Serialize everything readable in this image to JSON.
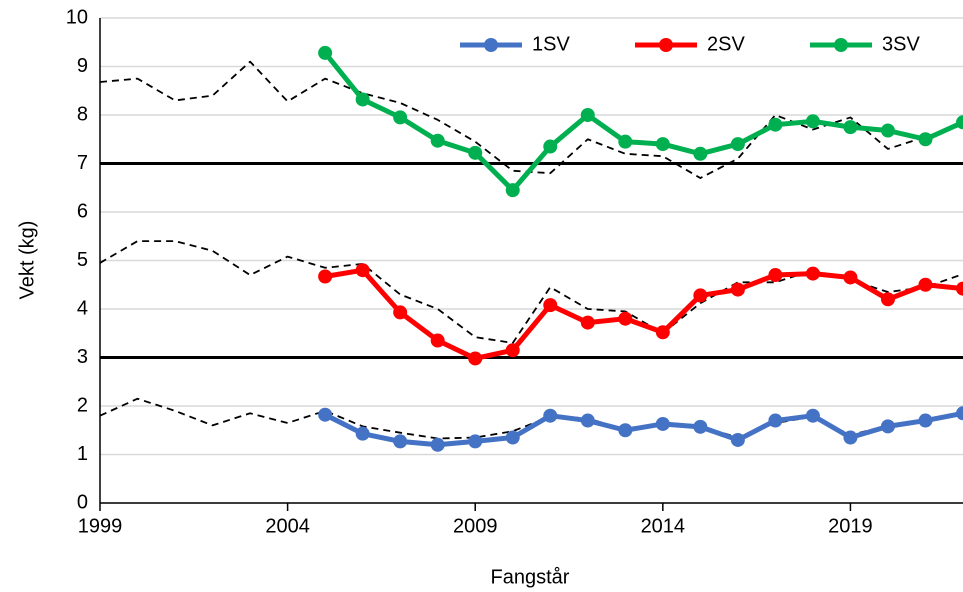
{
  "chart_data": {
    "type": "line",
    "x_label": "Fangstår",
    "y_label": "Vekt (kg)",
    "x": [
      1999,
      2000,
      2001,
      2002,
      2003,
      2004,
      2005,
      2006,
      2007,
      2008,
      2009,
      2010,
      2011,
      2012,
      2013,
      2014,
      2015,
      2016,
      2017,
      2018,
      2019,
      2020,
      2021,
      2022
    ],
    "xlim": [
      1999,
      2022
    ],
    "xticks": [
      1999,
      2004,
      2009,
      2014,
      2019
    ],
    "ylim": [
      0,
      10
    ],
    "yticks": [
      0,
      1,
      2,
      3,
      4,
      5,
      6,
      7,
      8,
      9,
      10
    ],
    "grid": true,
    "grid_color": "#d9d9d9",
    "hlines": [
      3,
      7
    ],
    "legend": "top-right",
    "series": [
      {
        "color": "#000000",
        "dash": true,
        "values": [
          8.68,
          8.75,
          8.3,
          8.4,
          9.1,
          8.28,
          8.75,
          8.45,
          8.25,
          7.9,
          7.45,
          6.85,
          6.8,
          7.5,
          7.2,
          7.15,
          6.7,
          7.1,
          8.0,
          7.7,
          7.95,
          7.3,
          7.55,
          7.8
        ]
      },
      {
        "color": "#000000",
        "dash": true,
        "values": [
          4.95,
          5.4,
          5.4,
          5.2,
          4.7,
          5.08,
          4.85,
          4.93,
          4.3,
          4.0,
          3.42,
          3.3,
          4.45,
          4.0,
          3.95,
          3.5,
          4.12,
          4.55,
          4.55,
          4.8,
          4.6,
          4.35,
          4.45,
          4.72
        ]
      },
      {
        "color": "#000000",
        "dash": true,
        "values": [
          1.8,
          2.15,
          1.9,
          1.6,
          1.85,
          1.65,
          1.9,
          1.58,
          1.45,
          1.33,
          1.35,
          1.48,
          1.78,
          1.75,
          1.5,
          1.6,
          1.58,
          1.35,
          1.65,
          1.78,
          1.4,
          1.6,
          1.67,
          1.85
        ]
      },
      {
        "name": "1SV",
        "color": "#4472c4",
        "values": [
          null,
          null,
          null,
          null,
          null,
          null,
          1.82,
          1.43,
          1.27,
          1.2,
          1.27,
          1.35,
          1.8,
          1.7,
          1.5,
          1.63,
          1.57,
          1.3,
          1.7,
          1.8,
          1.35,
          1.58,
          1.7,
          1.85
        ]
      },
      {
        "name": "2SV",
        "color": "#ff0000",
        "values": [
          null,
          null,
          null,
          null,
          null,
          null,
          4.67,
          4.8,
          3.93,
          3.35,
          2.98,
          3.15,
          4.08,
          3.72,
          3.8,
          3.52,
          4.28,
          4.4,
          4.7,
          4.73,
          4.65,
          4.2,
          4.5,
          4.42
        ]
      },
      {
        "name": "3SV",
        "color": "#00b050",
        "values": [
          null,
          null,
          null,
          null,
          null,
          null,
          9.28,
          8.32,
          7.95,
          7.47,
          7.22,
          6.45,
          7.35,
          8.0,
          7.45,
          7.4,
          7.2,
          7.4,
          7.8,
          7.87,
          7.75,
          7.68,
          7.5,
          7.85
        ]
      }
    ]
  }
}
